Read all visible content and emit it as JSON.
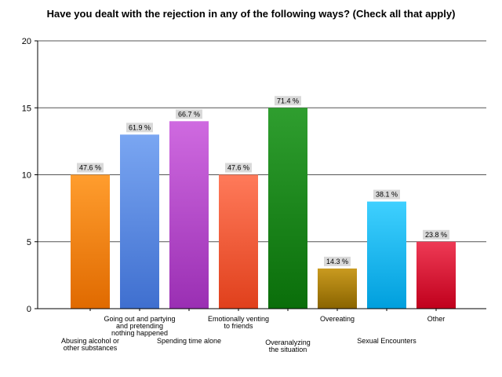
{
  "chart_data": {
    "type": "bar",
    "title": "Have you dealt with the rejection in any of the following ways? (Check all that apply)",
    "xlabel": "",
    "ylabel": "",
    "ylim": [
      0,
      20
    ],
    "yticks": [
      "0",
      "5",
      "10",
      "15",
      "20"
    ],
    "grid": true,
    "categories": [
      "Abusing alcohol or other substances",
      "Going out and partying and pretending nothing happened",
      "Spending time alone",
      "Emotionally venting to friends",
      "Overanalyzing the situation",
      "Overeating",
      "Sexual Encounters",
      "Other"
    ],
    "category_lines": [
      [
        "Abusing alcohol or",
        "other substances"
      ],
      [
        "Going out and partying",
        "and pretending",
        "nothing happened"
      ],
      [
        "Spending time alone"
      ],
      [
        "Emotionally venting",
        "to friends"
      ],
      [
        "Overanalyzing",
        "the situation"
      ],
      [
        "Overeating"
      ],
      [
        "Sexual Encounters"
      ],
      [
        "Other"
      ]
    ],
    "values": [
      10,
      13,
      14,
      10,
      15,
      3,
      8,
      5
    ],
    "percent_labels": [
      "47.6 %",
      "61.9 %",
      "66.7 %",
      "47.6 %",
      "71.4 %",
      "14.3 %",
      "38.1 %",
      "23.8 %"
    ],
    "colors": [
      [
        "#ff9d2e",
        "#e06a00"
      ],
      [
        "#7aa6f2",
        "#3f6fcf"
      ],
      [
        "#cf6ae0",
        "#9a2fb3"
      ],
      [
        "#ff7a5a",
        "#e0401c"
      ],
      [
        "#2f9e2f",
        "#0a6e0a"
      ],
      [
        "#c99a1f",
        "#8a6400"
      ],
      [
        "#3fd0ff",
        "#009fdd"
      ],
      [
        "#ee3a55",
        "#c0001c"
      ]
    ]
  }
}
